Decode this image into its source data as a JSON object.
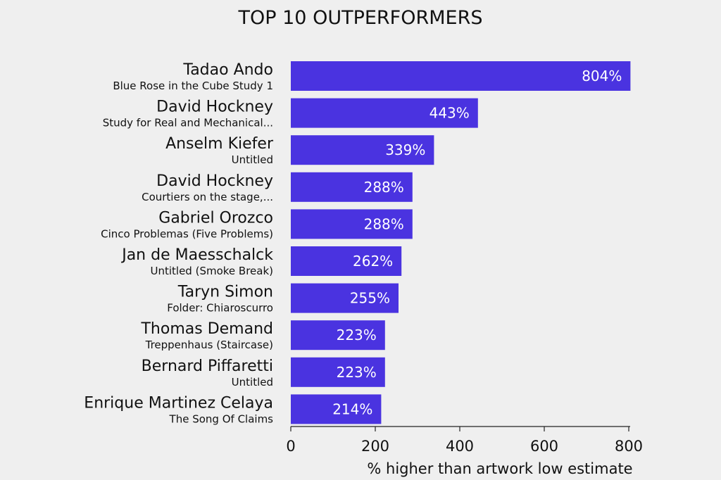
{
  "chart_data": {
    "type": "bar",
    "orientation": "horizontal",
    "title": "TOP 10 OUTPERFORMERS",
    "xlabel": "% higher than artwork low estimate",
    "ylabel": "",
    "xlim": [
      0,
      800
    ],
    "xticks": [
      0,
      200,
      400,
      600,
      800
    ],
    "grid": false,
    "bar_color": "#4a33e0",
    "categories": [
      {
        "artist": "Tadao Ando",
        "work": "Blue Rose in the Cube Study 1"
      },
      {
        "artist": "David Hockney",
        "work": "Study for Real and Mechanical..."
      },
      {
        "artist": "Anselm Kiefer",
        "work": "Untitled"
      },
      {
        "artist": "David Hockney",
        "work": "Courtiers on the stage,..."
      },
      {
        "artist": "Gabriel Orozco",
        "work": "Cinco Problemas (Five Problems)"
      },
      {
        "artist": "Jan de Maesschalck",
        "work": "Untitled (Smoke Break)"
      },
      {
        "artist": "Taryn Simon",
        "work": "Folder: Chiaroscurro"
      },
      {
        "artist": "Thomas Demand",
        "work": "Treppenhaus (Staircase)"
      },
      {
        "artist": "Bernard Piffaretti",
        "work": "Untitled"
      },
      {
        "artist": "Enrique Martinez Celaya",
        "work": "The Song Of Claims"
      }
    ],
    "values": [
      804,
      443,
      339,
      288,
      288,
      262,
      255,
      223,
      223,
      214
    ],
    "value_labels": [
      "804%",
      "443%",
      "339%",
      "288%",
      "288%",
      "262%",
      "255%",
      "223%",
      "223%",
      "214%"
    ]
  }
}
